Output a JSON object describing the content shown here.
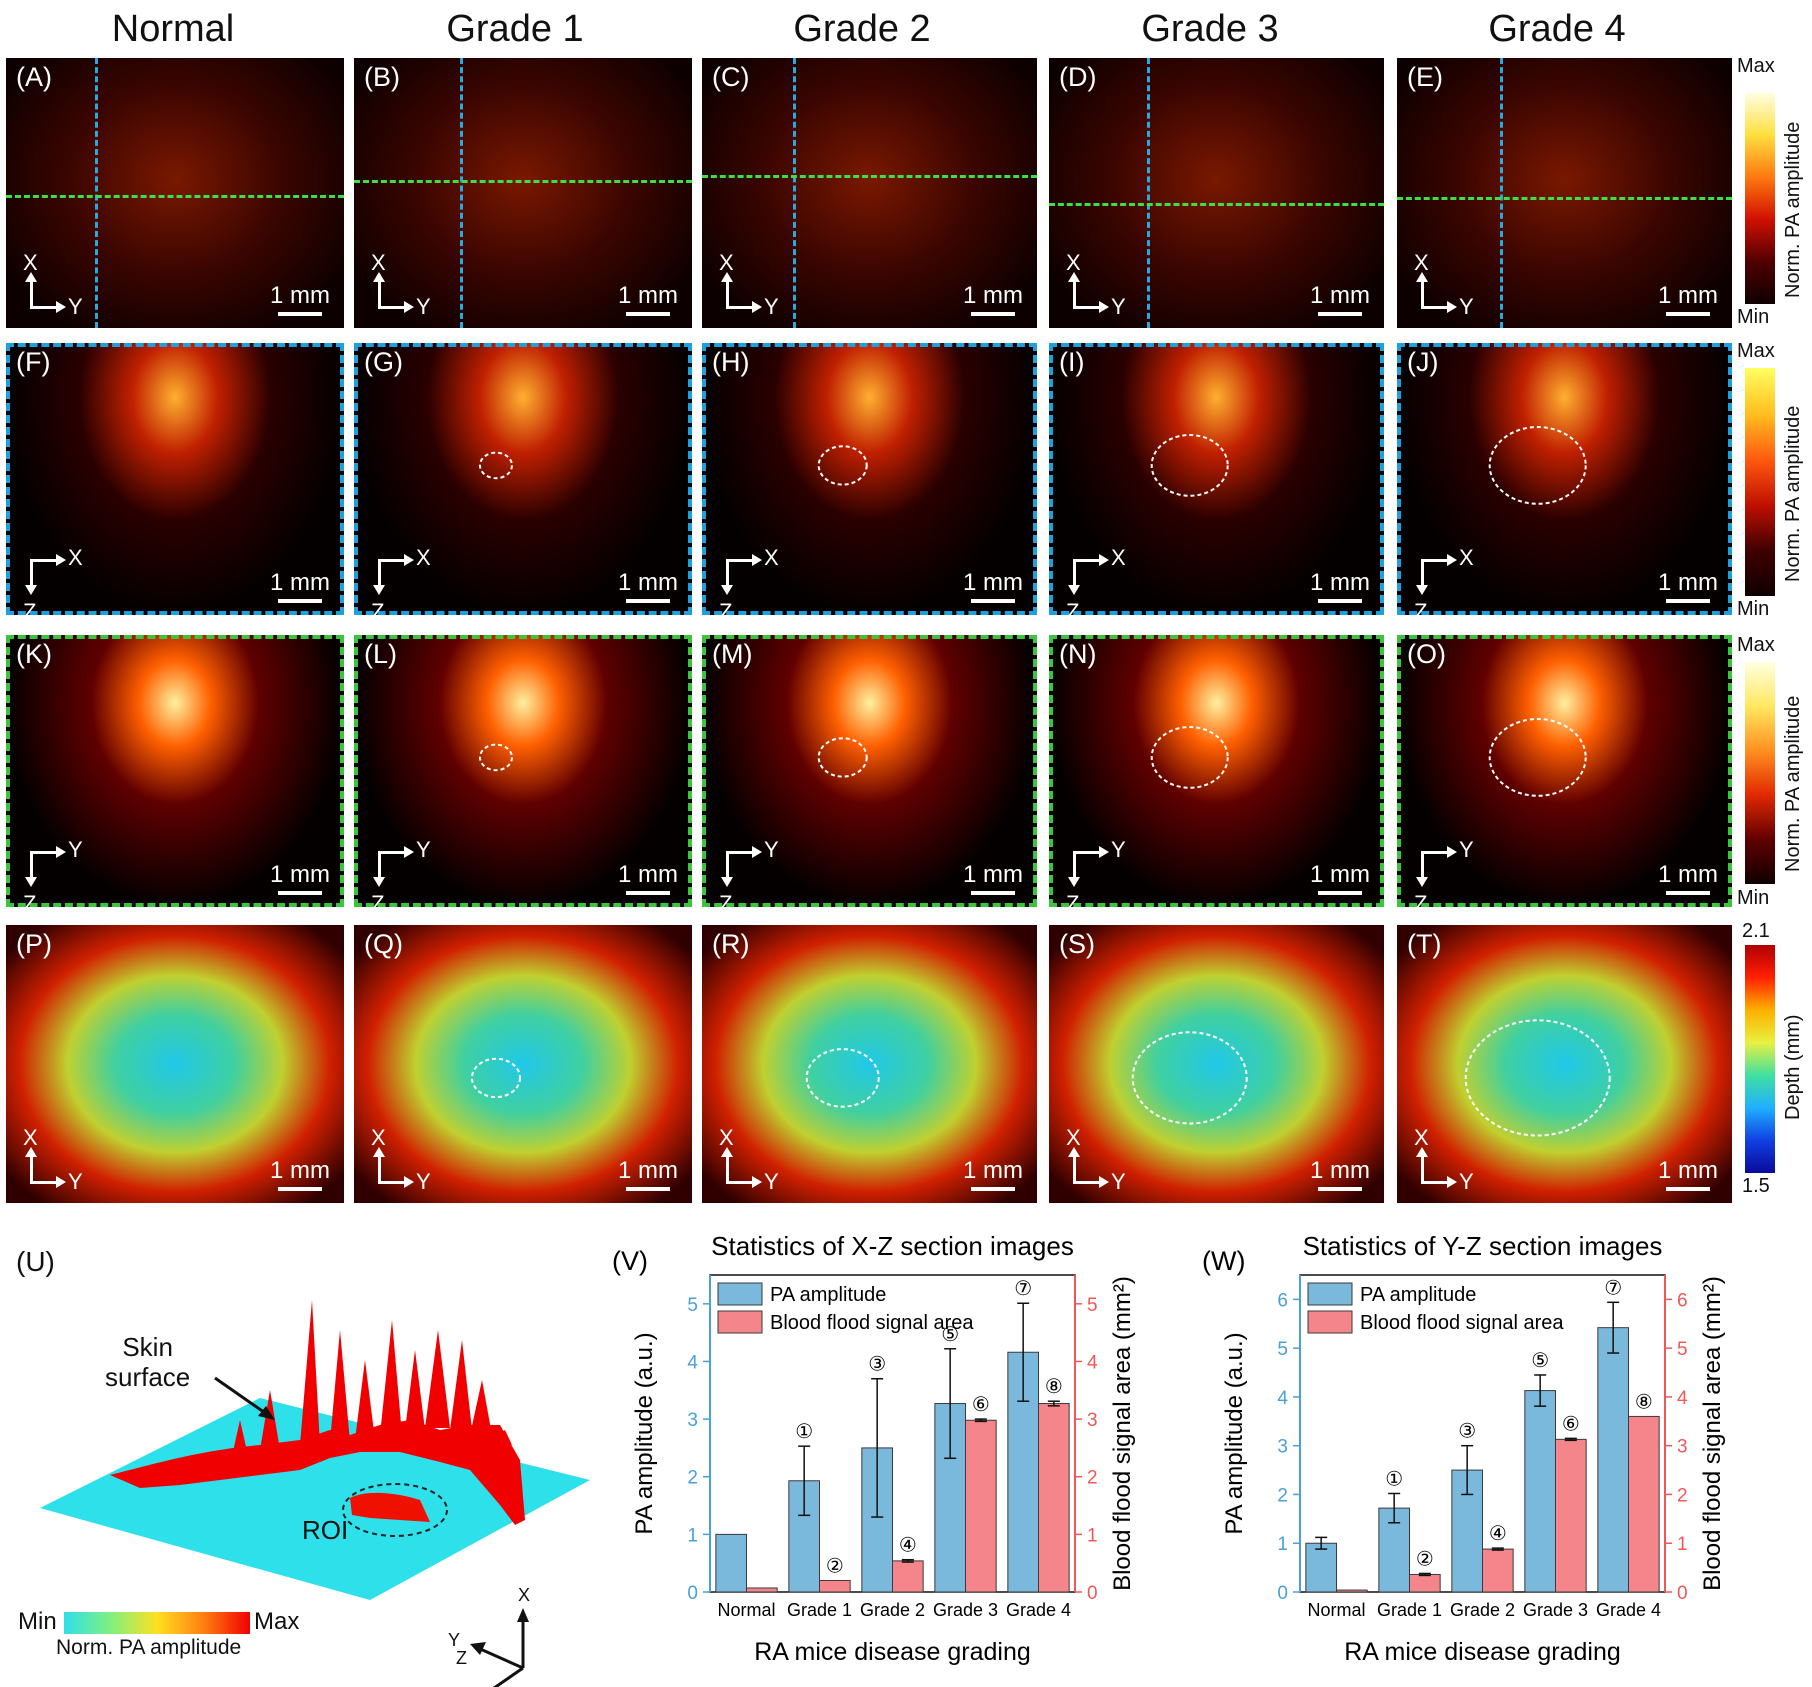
{
  "columns": [
    "Normal",
    "Grade 1",
    "Grade 2",
    "Grade 3",
    "Grade 4"
  ],
  "rows": [
    {
      "labels": [
        "(A)",
        "(B)",
        "(C)",
        "(D)",
        "(E)"
      ],
      "axes": [
        "X",
        "Y"
      ]
    },
    {
      "labels": [
        "(F)",
        "(G)",
        "(H)",
        "(I)",
        "(J)"
      ],
      "axes": [
        "Z",
        "X"
      ]
    },
    {
      "labels": [
        "(K)",
        "(L)",
        "(M)",
        "(N)",
        "(O)"
      ],
      "axes": [
        "Z",
        "Y"
      ]
    },
    {
      "labels": [
        "(P)",
        "(Q)",
        "(R)",
        "(S)",
        "(T)"
      ],
      "axes": [
        "X",
        "Y"
      ]
    }
  ],
  "scale_bar": "1 mm",
  "colorbars": {
    "pa": {
      "max": "Max",
      "min": "Min",
      "title": "Norm. PA amplitude"
    },
    "depth": {
      "max": "2.1",
      "min": "1.5",
      "title": "Depth (mm)"
    }
  },
  "panel_u": {
    "label": "(U)",
    "skin_surface": "Skin\nsurface",
    "roi": "ROI",
    "cb_min": "Min",
    "cb_max": "Max",
    "cb_title": "Norm. PA amplitude",
    "axis_x": "X",
    "axis_y": "Y",
    "axis_z": "Z"
  },
  "chart_data": [
    {
      "panel": "(V)",
      "type": "bar",
      "title": "Statistics of X-Z section images",
      "xlabel": "RA mice disease grading",
      "ylabel": "PA amplitude (a.u.)",
      "ylabel_right": "Blood flood signal area (mm²)",
      "categories": [
        "Normal",
        "Grade 1",
        "Grade 2",
        "Grade 3",
        "Grade 4"
      ],
      "ylim": [
        0,
        5.5
      ],
      "yticks": [
        "0",
        "1",
        "2",
        "3",
        "4",
        "5"
      ],
      "ylim_right": [
        0,
        5.5
      ],
      "yticks_right": [
        "0",
        "1",
        "2",
        "3",
        "4",
        "5"
      ],
      "series": [
        {
          "name": "PA amplitude",
          "axis": "left",
          "color": "#7ab8dc",
          "values": [
            1.0,
            1.93,
            2.5,
            3.27,
            4.16
          ],
          "errors": [
            0.0,
            0.6,
            1.2,
            0.95,
            0.85
          ],
          "markers": [
            "",
            "①",
            "③",
            "⑤",
            "⑦"
          ]
        },
        {
          "name": "Blood flood signal area",
          "axis": "right",
          "color": "#f4858a",
          "values": [
            0.07,
            0.2,
            0.54,
            2.98,
            3.27
          ],
          "errors": [
            0.0,
            0.0,
            0.02,
            0.02,
            0.04
          ],
          "markers": [
            "",
            "②",
            "④",
            "⑥",
            "⑧"
          ]
        }
      ]
    },
    {
      "panel": "(W)",
      "type": "bar",
      "title": "Statistics of Y-Z section images",
      "xlabel": "RA mice disease grading",
      "ylabel": "PA amplitude (a.u.)",
      "ylabel_right": "Blood flood signal area (mm²)",
      "categories": [
        "Normal",
        "Grade 1",
        "Grade 2",
        "Grade 3",
        "Grade 4"
      ],
      "ylim": [
        0,
        6.5
      ],
      "yticks": [
        "0",
        "1",
        "2",
        "3",
        "4",
        "5",
        "6"
      ],
      "ylim_right": [
        0,
        6.5
      ],
      "yticks_right": [
        "0",
        "1",
        "2",
        "3",
        "4",
        "5",
        "6"
      ],
      "series": [
        {
          "name": "PA amplitude",
          "axis": "left",
          "color": "#7ab8dc",
          "values": [
            1.0,
            1.72,
            2.5,
            4.13,
            5.42
          ],
          "errors": [
            0.12,
            0.3,
            0.5,
            0.32,
            0.52
          ],
          "markers": [
            "",
            "①",
            "③",
            "⑤",
            "⑦"
          ]
        },
        {
          "name": "Blood flood signal area",
          "axis": "right",
          "color": "#f4858a",
          "values": [
            0.04,
            0.36,
            0.88,
            3.13,
            3.6
          ],
          "errors": [
            0.0,
            0.02,
            0.02,
            0.02,
            0.0
          ],
          "markers": [
            "",
            "②",
            "④",
            "⑥",
            "⑧"
          ]
        }
      ]
    }
  ]
}
